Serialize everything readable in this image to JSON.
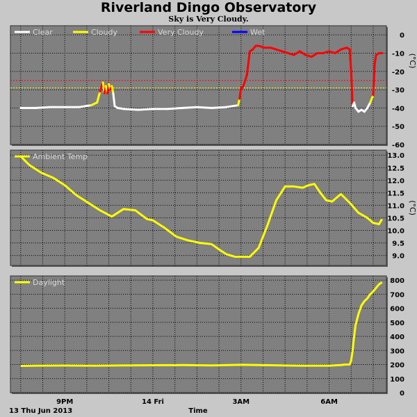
{
  "title": "Riverland Dingo Observatory",
  "subtitle": "Sky is Very Cloudy.",
  "x_axis": {
    "title": "Time",
    "date_label": "13 Thu Jun 2013",
    "ticks": [
      {
        "hour": 21,
        "label": "9PM"
      },
      {
        "hour": 24,
        "label": "14 Fri"
      },
      {
        "hour": 27,
        "label": "3AM"
      },
      {
        "hour": 30,
        "label": "6AM"
      }
    ]
  },
  "chart_data": [
    {
      "type": "line",
      "name": "sky",
      "unit": "(°C)",
      "legend": [
        {
          "label": "Clear",
          "color": "#ffffff"
        },
        {
          "label": "Cloudy",
          "color": "#ffff00"
        },
        {
          "label": "Very Cloudy",
          "color": "#ff0000"
        },
        {
          "label": "Wet",
          "color": "#0000ff"
        }
      ],
      "ylim": [
        -60,
        5
      ],
      "yticks": [
        0,
        -10,
        -20,
        -30,
        -40,
        -50,
        -60
      ],
      "thresholds": [
        {
          "value": -25,
          "color": "#ff0000"
        },
        {
          "value": -29,
          "color": "#ffff00"
        }
      ],
      "x": [
        19.5,
        20.0,
        20.5,
        21.0,
        21.5,
        21.9,
        22.1,
        22.2,
        22.3,
        22.35,
        22.4,
        22.45,
        22.5,
        22.55,
        22.6,
        22.65,
        22.7,
        22.8,
        23.0,
        23.5,
        24.0,
        24.5,
        25.0,
        25.5,
        26.0,
        26.5,
        26.9,
        26.95,
        27.0,
        27.05,
        27.1,
        27.2,
        27.3,
        27.4,
        27.5,
        27.6,
        27.8,
        28.0,
        28.2,
        28.4,
        28.6,
        28.8,
        29.0,
        29.2,
        29.4,
        29.6,
        29.8,
        30.0,
        30.2,
        30.4,
        30.6,
        30.7,
        30.75,
        30.8,
        30.85,
        30.9,
        31.0,
        31.1,
        31.2,
        31.3,
        31.4,
        31.45,
        31.5,
        31.55,
        31.6,
        31.7,
        31.8
      ],
      "y": [
        -40,
        -40,
        -39.5,
        -39.5,
        -39.5,
        -38.5,
        -37,
        -31,
        -26,
        -32,
        -28,
        -32,
        -27,
        -30,
        -28,
        -32,
        -39,
        -40,
        -40.5,
        -41,
        -40.5,
        -40.5,
        -40,
        -39.5,
        -40,
        -39.5,
        -38.5,
        -35,
        -29,
        -29,
        -27,
        -22,
        -9,
        -8,
        -6,
        -6,
        -7,
        -7,
        -8,
        -9,
        -10,
        -11,
        -9,
        -11,
        -12,
        -10,
        -10,
        -9,
        -10,
        -8,
        -7,
        -8,
        -20,
        -39,
        -37,
        -40,
        -42,
        -41,
        -42,
        -40,
        -37,
        -35,
        -33,
        -16,
        -11,
        -10,
        -10
      ],
      "y_state": [
        "Clear",
        "Clear",
        "Clear",
        "Clear",
        "Clear",
        "Clear",
        "Cloudy",
        "Cloudy",
        "Very Cloudy",
        "Cloudy",
        "Very Cloudy",
        "Cloudy",
        "Very Cloudy",
        "Cloudy",
        "Very Cloudy",
        "Cloudy",
        "Clear",
        "Clear",
        "Clear",
        "Clear",
        "Clear",
        "Clear",
        "Clear",
        "Clear",
        "Clear",
        "Clear",
        "Clear",
        "Cloudy",
        "Very Cloudy",
        "Very Cloudy",
        "Very Cloudy",
        "Very Cloudy",
        "Very Cloudy",
        "Very Cloudy",
        "Very Cloudy",
        "Very Cloudy",
        "Very Cloudy",
        "Very Cloudy",
        "Very Cloudy",
        "Very Cloudy",
        "Very Cloudy",
        "Very Cloudy",
        "Very Cloudy",
        "Very Cloudy",
        "Very Cloudy",
        "Very Cloudy",
        "Very Cloudy",
        "Very Cloudy",
        "Very Cloudy",
        "Very Cloudy",
        "Very Cloudy",
        "Very Cloudy",
        "Very Cloudy",
        "Very Cloudy",
        "Clear",
        "Clear",
        "Clear",
        "Clear",
        "Clear",
        "Clear",
        "Clear",
        "Cloudy",
        "Cloudy",
        "Very Cloudy",
        "Very Cloudy",
        "Very Cloudy",
        "Very Cloudy"
      ]
    },
    {
      "type": "line",
      "name": "ambient",
      "legend": [
        {
          "label": "Ambient Temp",
          "color": "#ffff00"
        }
      ],
      "unit": "(°C)",
      "ylim": [
        8.6,
        13.2
      ],
      "yticks": [
        9.0,
        9.5,
        10.0,
        10.5,
        11.0,
        11.5,
        12.0,
        12.5,
        13.0
      ],
      "x": [
        19.5,
        19.8,
        20.2,
        20.6,
        21.0,
        21.4,
        21.8,
        22.2,
        22.6,
        23.0,
        23.4,
        23.8,
        24.0,
        24.4,
        24.8,
        25.2,
        25.6,
        26.0,
        26.3,
        26.5,
        26.8,
        27.0,
        27.3,
        27.6,
        27.9,
        28.2,
        28.5,
        28.8,
        29.1,
        29.3,
        29.5,
        29.7,
        29.9,
        30.1,
        30.4,
        30.7,
        31.0,
        31.3,
        31.5,
        31.7,
        31.8
      ],
      "y": [
        12.95,
        12.6,
        12.3,
        12.1,
        11.8,
        11.4,
        11.1,
        10.8,
        10.55,
        10.85,
        10.8,
        10.45,
        10.4,
        10.1,
        9.75,
        9.6,
        9.5,
        9.45,
        9.2,
        9.05,
        8.95,
        8.95,
        8.95,
        9.3,
        10.2,
        11.2,
        11.75,
        11.75,
        11.7,
        11.8,
        11.85,
        11.5,
        11.2,
        11.15,
        11.45,
        11.1,
        10.7,
        10.5,
        10.3,
        10.25,
        10.45
      ]
    },
    {
      "type": "line",
      "name": "daylight",
      "legend": [
        {
          "label": "Daylight",
          "color": "#ffff00"
        }
      ],
      "ylim": [
        0,
        830
      ],
      "yticks": [
        0,
        100,
        200,
        300,
        400,
        500,
        600,
        700,
        800
      ],
      "x": [
        19.5,
        20.0,
        21.0,
        22.0,
        23.0,
        24.0,
        25.0,
        26.0,
        27.0,
        28.0,
        29.0,
        30.0,
        30.4,
        30.55,
        30.7,
        30.75,
        30.8,
        30.85,
        30.9,
        31.0,
        31.1,
        31.2,
        31.3,
        31.4,
        31.5,
        31.6,
        31.7,
        31.8
      ],
      "y": [
        190,
        192,
        193,
        192,
        194,
        195,
        196,
        194,
        198,
        195,
        192,
        192,
        196,
        200,
        200,
        230,
        300,
        400,
        480,
        560,
        620,
        650,
        670,
        700,
        720,
        745,
        770,
        785
      ]
    }
  ],
  "colors": {
    "background": "#c8c8c8",
    "plot_bg": "#808080",
    "grid": "#000000"
  }
}
